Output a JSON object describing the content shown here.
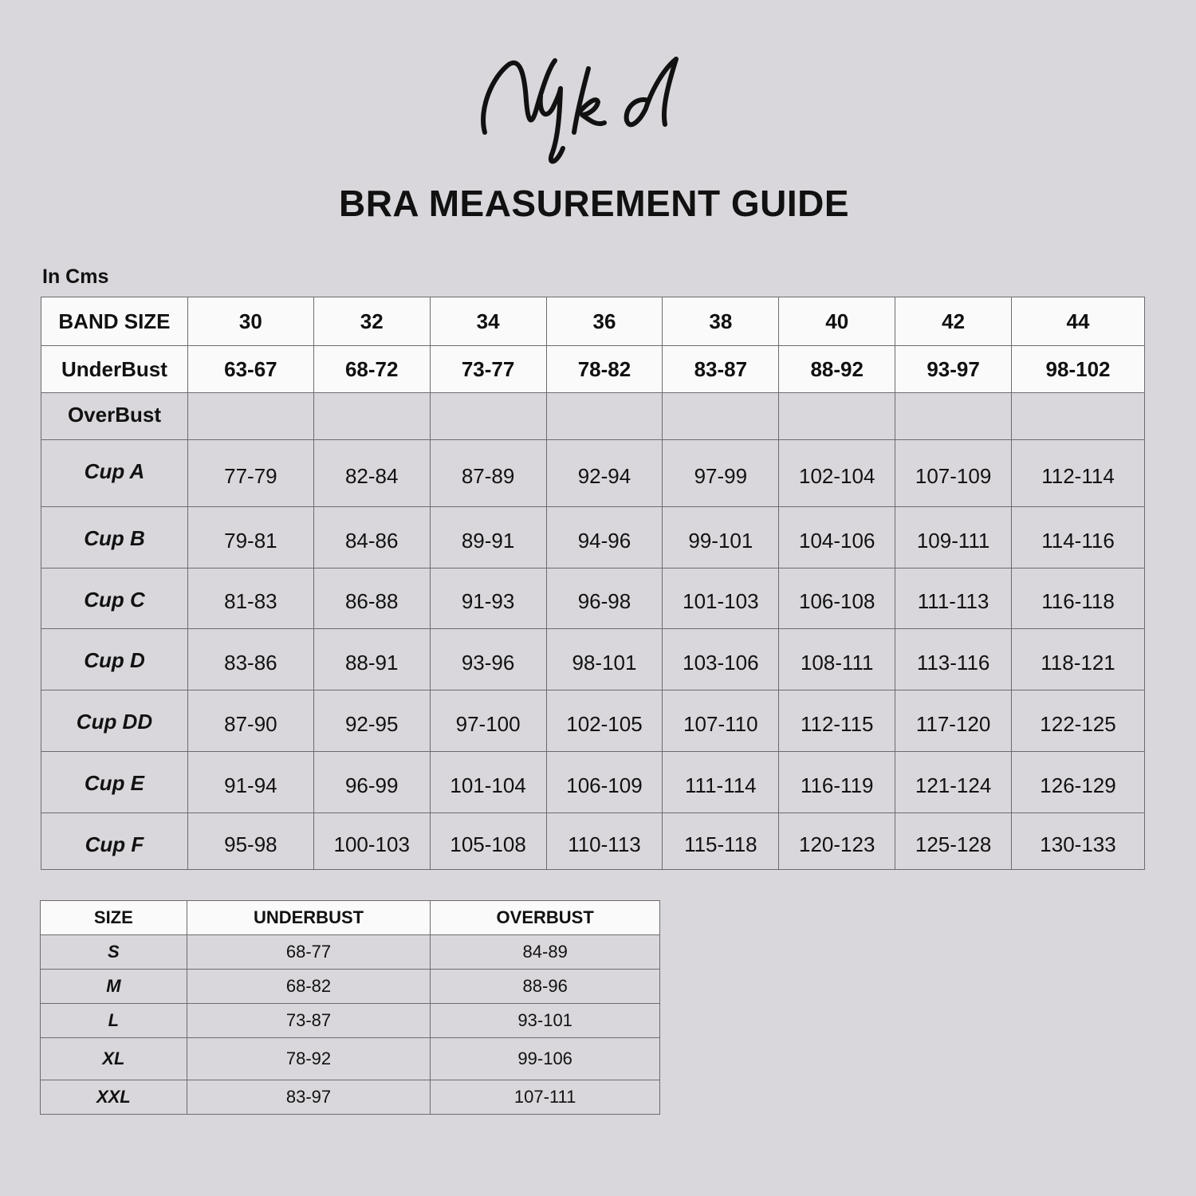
{
  "logo": "Nykd",
  "title": "BRA MEASUREMENT GUIDE",
  "unit_label": "In Cms",
  "main_table": {
    "band_label": "BAND SIZE",
    "bands": [
      "30",
      "32",
      "34",
      "36",
      "38",
      "40",
      "42",
      "44"
    ],
    "underbust_label": "UnderBust",
    "underbust": [
      "63-67",
      "68-72",
      "73-77",
      "78-82",
      "83-87",
      "88-92",
      "93-97",
      "98-102"
    ],
    "overbust_label": "OverBust",
    "cups": [
      {
        "label": "Cup A",
        "values": [
          "77-79",
          "82-84",
          "87-89",
          "92-94",
          "97-99",
          "102-104",
          "107-109",
          "112-114"
        ]
      },
      {
        "label": "Cup B",
        "values": [
          "79-81",
          "84-86",
          "89-91",
          "94-96",
          "99-101",
          "104-106",
          "109-111",
          "114-116"
        ]
      },
      {
        "label": "Cup C",
        "values": [
          "81-83",
          "86-88",
          "91-93",
          "96-98",
          "101-103",
          "106-108",
          "111-113",
          "116-118"
        ]
      },
      {
        "label": "Cup D",
        "values": [
          "83-86",
          "88-91",
          "93-96",
          "98-101",
          "103-106",
          "108-111",
          "113-116",
          "118-121"
        ]
      },
      {
        "label": "Cup DD",
        "values": [
          "87-90",
          "92-95",
          "97-100",
          "102-105",
          "107-110",
          "112-115",
          "117-120",
          "122-125"
        ]
      },
      {
        "label": "Cup E",
        "values": [
          "91-94",
          "96-99",
          "101-104",
          "106-109",
          "111-114",
          "116-119",
          "121-124",
          "126-129"
        ]
      },
      {
        "label": "Cup F",
        "values": [
          "95-98",
          "100-103",
          "105-108",
          "110-113",
          "115-118",
          "120-123",
          "125-128",
          "130-133"
        ]
      }
    ]
  },
  "size_table": {
    "headers": [
      "SIZE",
      "UNDERBUST",
      "OVERBUST"
    ],
    "rows": [
      [
        "S",
        "68-77",
        "84-89"
      ],
      [
        "M",
        "68-82",
        "88-96"
      ],
      [
        "L",
        "73-87",
        "93-101"
      ],
      [
        "XL",
        "78-92",
        "99-106"
      ],
      [
        "XXL",
        "83-97",
        "107-111"
      ]
    ]
  }
}
